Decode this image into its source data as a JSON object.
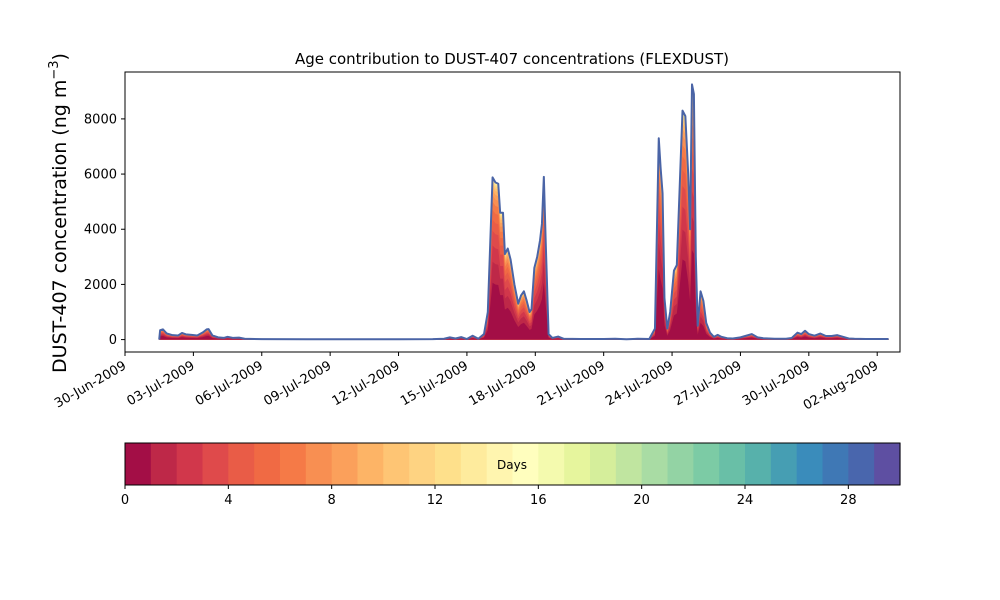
{
  "chart_data": {
    "type": "area",
    "title": "Age contribution to DUST-407 concentrations (FLEXDUST)",
    "ylabel": "DUST-407 concentration (ng m",
    "ylabel_sup": "−3",
    "ylabel_close": ")",
    "xlim": [
      "2009-06-30",
      "2009-08-03"
    ],
    "ylim": [
      -450,
      9700
    ],
    "yticks": [
      0,
      2000,
      4000,
      6000,
      8000
    ],
    "xticks": [
      "2009-06-30",
      "2009-07-03",
      "2009-07-06",
      "2009-07-09",
      "2009-07-12",
      "2009-07-15",
      "2009-07-18",
      "2009-07-21",
      "2009-07-24",
      "2009-07-27",
      "2009-07-30",
      "2009-08-02"
    ],
    "xtick_labels": [
      "30-Jun-2009",
      "03-Jul-2009",
      "06-Jul-2009",
      "09-Jul-2009",
      "12-Jul-2009",
      "15-Jul-2009",
      "18-Jul-2009",
      "21-Jul-2009",
      "24-Jul-2009",
      "27-Jul-2009",
      "30-Jul-2009",
      "02-Aug-2009"
    ],
    "total_line_color": "#4a64a6",
    "total": [
      [
        "2009-07-01T12:00",
        0
      ],
      [
        "2009-07-01T13:00",
        340
      ],
      [
        "2009-07-01T16:00",
        370
      ],
      [
        "2009-07-01T20:00",
        220
      ],
      [
        "2009-07-02T02:00",
        160
      ],
      [
        "2009-07-02T08:00",
        150
      ],
      [
        "2009-07-02T12:00",
        240
      ],
      [
        "2009-07-02T16:00",
        190
      ],
      [
        "2009-07-02T22:00",
        170
      ],
      [
        "2009-07-03T04:00",
        150
      ],
      [
        "2009-07-03T10:00",
        260
      ],
      [
        "2009-07-03T14:00",
        370
      ],
      [
        "2009-07-03T16:00",
        380
      ],
      [
        "2009-07-03T20:00",
        150
      ],
      [
        "2009-07-04T02:00",
        80
      ],
      [
        "2009-07-04T08:00",
        60
      ],
      [
        "2009-07-04T12:00",
        100
      ],
      [
        "2009-07-04T18:00",
        60
      ],
      [
        "2009-07-05T00:00",
        70
      ],
      [
        "2009-07-05T06:00",
        30
      ],
      [
        "2009-07-06T00:00",
        15
      ],
      [
        "2009-07-08T00:00",
        10
      ],
      [
        "2009-07-10T00:00",
        10
      ],
      [
        "2009-07-12T00:00",
        10
      ],
      [
        "2009-07-13T12:00",
        15
      ],
      [
        "2009-07-14T00:00",
        30
      ],
      [
        "2009-07-14T06:00",
        80
      ],
      [
        "2009-07-14T12:00",
        40
      ],
      [
        "2009-07-14T18:00",
        90
      ],
      [
        "2009-07-15T00:00",
        20
      ],
      [
        "2009-07-15T06:00",
        140
      ],
      [
        "2009-07-15T12:00",
        30
      ],
      [
        "2009-07-15T18:00",
        200
      ],
      [
        "2009-07-15T22:00",
        1000
      ],
      [
        "2009-07-16T03:00",
        5880
      ],
      [
        "2009-07-16T06:00",
        5700
      ],
      [
        "2009-07-16T09:00",
        5650
      ],
      [
        "2009-07-16T11:00",
        4600
      ],
      [
        "2009-07-16T14:00",
        4600
      ],
      [
        "2009-07-16T16:00",
        3100
      ],
      [
        "2009-07-16T19:00",
        3300
      ],
      [
        "2009-07-16T22:00",
        2900
      ],
      [
        "2009-07-17T02:00",
        2000
      ],
      [
        "2009-07-17T06:00",
        1300
      ],
      [
        "2009-07-17T09:00",
        1600
      ],
      [
        "2009-07-17T12:00",
        1750
      ],
      [
        "2009-07-17T15:00",
        1400
      ],
      [
        "2009-07-17T18:00",
        1000
      ],
      [
        "2009-07-17T20:00",
        1100
      ],
      [
        "2009-07-17T23:00",
        2600
      ],
      [
        "2009-07-18T02:00",
        3000
      ],
      [
        "2009-07-18T05:00",
        3600
      ],
      [
        "2009-07-18T07:00",
        4200
      ],
      [
        "2009-07-18T09:00",
        5900
      ],
      [
        "2009-07-18T11:00",
        3500
      ],
      [
        "2009-07-18T14:00",
        200
      ],
      [
        "2009-07-18T18:00",
        60
      ],
      [
        "2009-07-19T00:00",
        110
      ],
      [
        "2009-07-19T06:00",
        30
      ],
      [
        "2009-07-20T00:00",
        20
      ],
      [
        "2009-07-21T00:00",
        20
      ],
      [
        "2009-07-21T12:00",
        30
      ],
      [
        "2009-07-22T00:00",
        10
      ],
      [
        "2009-07-22T12:00",
        30
      ],
      [
        "2009-07-23T00:00",
        20
      ],
      [
        "2009-07-23T06:00",
        400
      ],
      [
        "2009-07-23T10:00",
        7300
      ],
      [
        "2009-07-23T12:00",
        6200
      ],
      [
        "2009-07-23T14:00",
        5300
      ],
      [
        "2009-07-23T16:00",
        1500
      ],
      [
        "2009-07-23T19:00",
        400
      ],
      [
        "2009-07-23T22:00",
        1000
      ],
      [
        "2009-07-24T02:00",
        2500
      ],
      [
        "2009-07-24T05:00",
        2700
      ],
      [
        "2009-07-24T08:00",
        5500
      ],
      [
        "2009-07-24T11:00",
        8300
      ],
      [
        "2009-07-24T14:00",
        8100
      ],
      [
        "2009-07-24T17:00",
        6000
      ],
      [
        "2009-07-24T19:00",
        4000
      ],
      [
        "2009-07-24T21:00",
        9250
      ],
      [
        "2009-07-24T23:00",
        8900
      ],
      [
        "2009-07-25T01:00",
        3000
      ],
      [
        "2009-07-25T03:00",
        500
      ],
      [
        "2009-07-25T06:00",
        1750
      ],
      [
        "2009-07-25T09:00",
        1400
      ],
      [
        "2009-07-25T12:00",
        600
      ],
      [
        "2009-07-25T16:00",
        250
      ],
      [
        "2009-07-25T20:00",
        100
      ],
      [
        "2009-07-26T00:00",
        170
      ],
      [
        "2009-07-26T04:00",
        100
      ],
      [
        "2009-07-26T10:00",
        50
      ],
      [
        "2009-07-26T16:00",
        40
      ],
      [
        "2009-07-27T00:00",
        80
      ],
      [
        "2009-07-27T12:00",
        200
      ],
      [
        "2009-07-27T18:00",
        80
      ],
      [
        "2009-07-28T00:00",
        50
      ],
      [
        "2009-07-28T12:00",
        30
      ],
      [
        "2009-07-29T00:00",
        30
      ],
      [
        "2009-07-29T06:00",
        60
      ],
      [
        "2009-07-29T12:00",
        250
      ],
      [
        "2009-07-29T16:00",
        200
      ],
      [
        "2009-07-29T20:00",
        320
      ],
      [
        "2009-07-30T00:00",
        200
      ],
      [
        "2009-07-30T06:00",
        140
      ],
      [
        "2009-07-30T12:00",
        220
      ],
      [
        "2009-07-30T18:00",
        130
      ],
      [
        "2009-07-31T00:00",
        130
      ],
      [
        "2009-07-31T06:00",
        160
      ],
      [
        "2009-07-31T12:00",
        100
      ],
      [
        "2009-07-31T18:00",
        40
      ],
      [
        "2009-08-01T00:00",
        30
      ],
      [
        "2009-08-01T12:00",
        20
      ],
      [
        "2009-08-02T00:00",
        20
      ],
      [
        "2009-08-02T12:00",
        20
      ]
    ],
    "age_bands": [
      {
        "days": [
          0,
          1
        ],
        "color": "#a30e46",
        "cum_fraction": 0.35
      },
      {
        "days": [
          1,
          2
        ],
        "color": "#be2848",
        "cum_fraction": 0.48
      },
      {
        "days": [
          2,
          3
        ],
        "color": "#d1374b",
        "cum_fraction": 0.58
      },
      {
        "days": [
          3,
          4
        ],
        "color": "#df4a4b",
        "cum_fraction": 0.67
      },
      {
        "days": [
          4,
          5
        ],
        "color": "#e95c47",
        "cum_fraction": 0.74
      },
      {
        "days": [
          5,
          6
        ],
        "color": "#f06a44",
        "cum_fraction": 0.8
      },
      {
        "days": [
          6,
          7
        ],
        "color": "#f57a47",
        "cum_fraction": 0.85
      },
      {
        "days": [
          7,
          8
        ],
        "color": "#f88f52",
        "cum_fraction": 0.89
      },
      {
        "days": [
          8,
          9
        ],
        "color": "#fba05b",
        "cum_fraction": 0.92
      },
      {
        "days": [
          9,
          10
        ],
        "color": "#fdb466",
        "cum_fraction": 0.945
      },
      {
        "days": [
          10,
          11
        ],
        "color": "#fec574",
        "cum_fraction": 0.962
      },
      {
        "days": [
          11,
          12
        ],
        "color": "#fed382",
        "cum_fraction": 0.975
      },
      {
        "days": [
          12,
          13
        ],
        "color": "#fee08b",
        "cum_fraction": 0.985
      },
      {
        "days": [
          13,
          14
        ],
        "color": "#feeb9d",
        "cum_fraction": 0.992
      },
      {
        "days": [
          14,
          15
        ],
        "color": "#fff5af",
        "cum_fraction": 1.0
      }
    ],
    "colorbar": {
      "label": "Days",
      "range": [
        0,
        30
      ],
      "ticks": [
        0,
        4,
        8,
        12,
        16,
        20,
        24,
        28
      ],
      "colors": [
        "#a30e46",
        "#be2848",
        "#d1374b",
        "#df4a4b",
        "#e95c47",
        "#f06a44",
        "#f57a47",
        "#f88f52",
        "#fba05b",
        "#fdb466",
        "#fec574",
        "#fed382",
        "#fee08b",
        "#feeb9d",
        "#fff5af",
        "#fffebe",
        "#f4faae",
        "#e6f59d",
        "#d5ee9b",
        "#c0e5a0",
        "#a9dca4",
        "#93d3a4",
        "#7ccba5",
        "#69bfa7",
        "#57b1ab",
        "#469eb3",
        "#3a8cbb",
        "#3f78b5",
        "#4966ad",
        "#5e4fa2"
      ]
    }
  }
}
